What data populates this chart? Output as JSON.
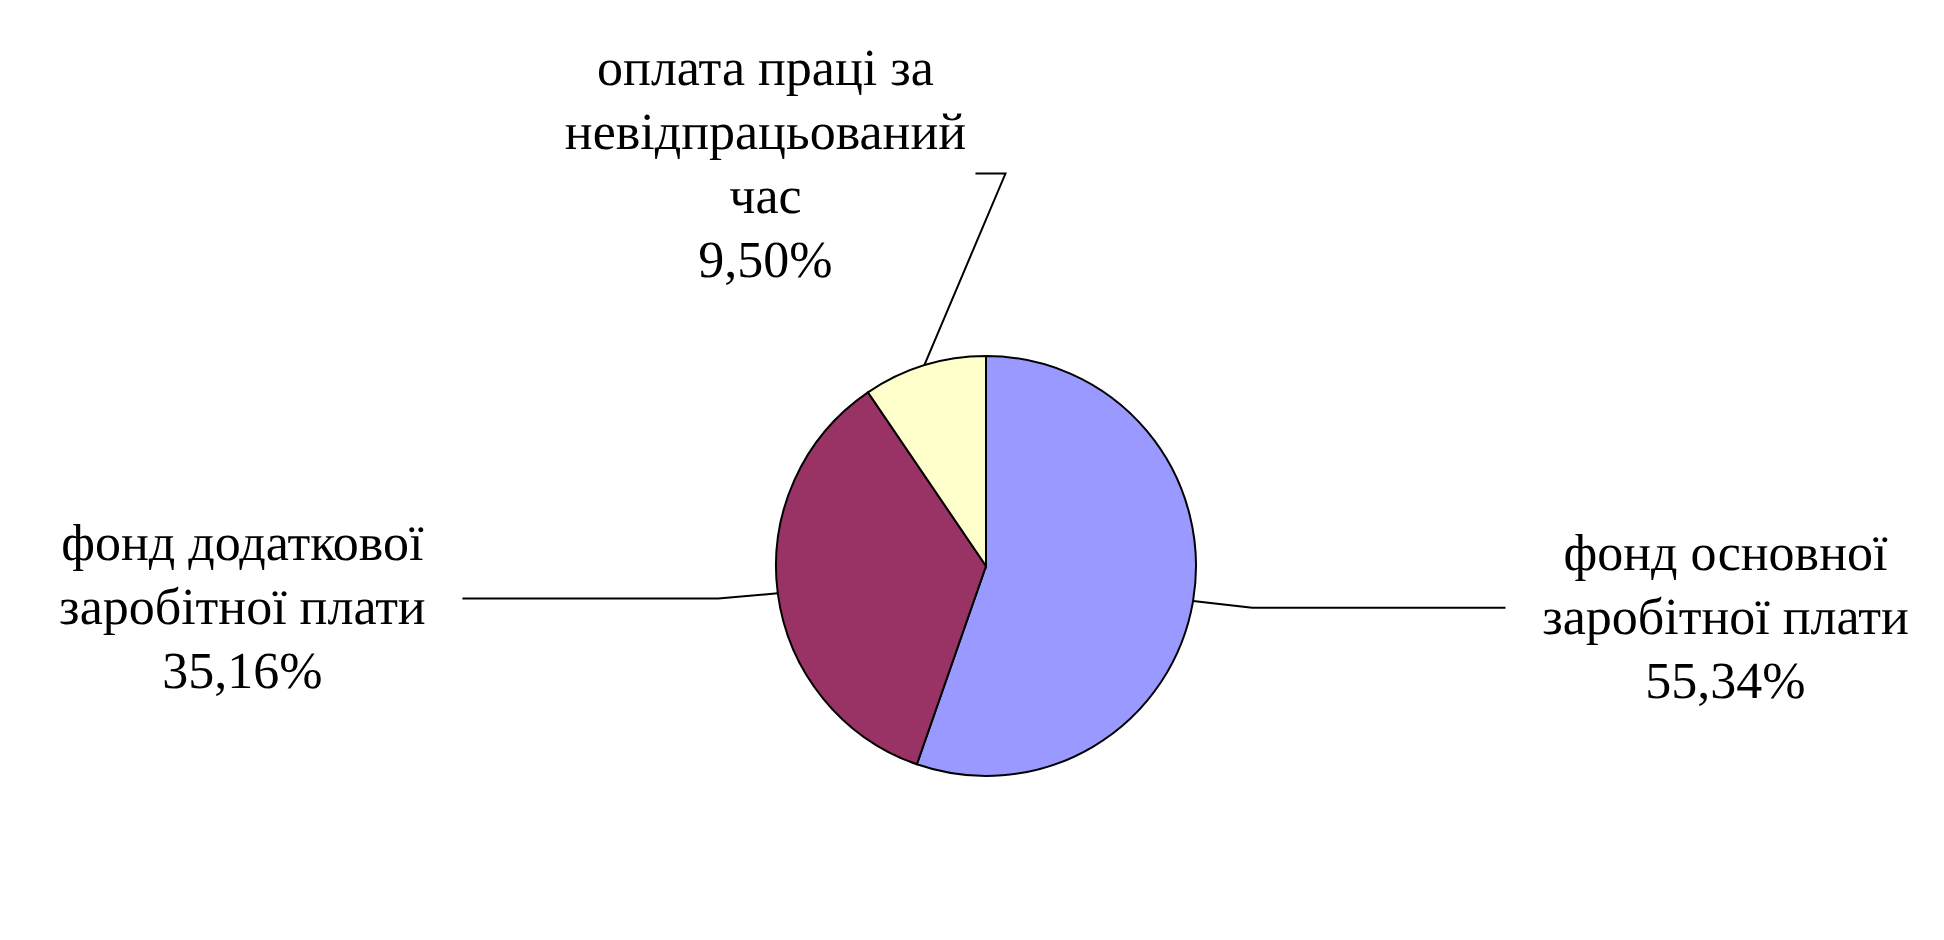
{
  "chart_data": {
    "type": "pie",
    "categories": [
      "фонд основної заробітної плати",
      "фонд додаткової заробітної плати",
      "оплата праці за невідпрацьований час"
    ],
    "values": [
      55.34,
      35.16,
      9.5
    ],
    "value_labels": [
      "55,34%",
      "35,16%",
      "9,50%"
    ],
    "colors": [
      "#9999ff",
      "#993366",
      "#ffffcc"
    ],
    "legend": false
  }
}
